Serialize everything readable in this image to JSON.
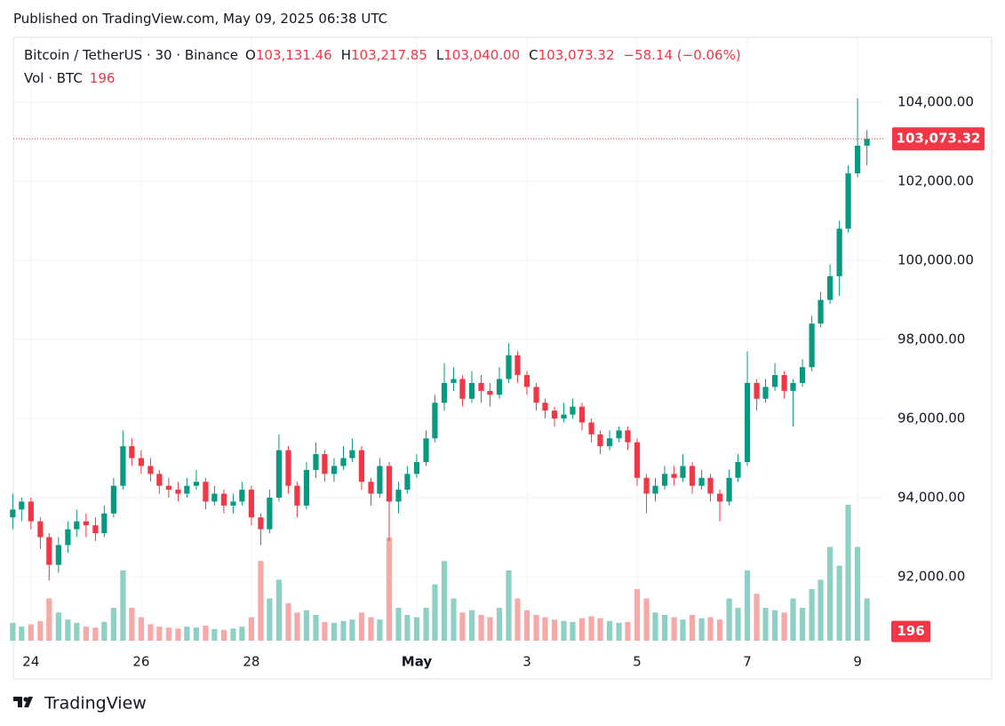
{
  "chart_data": {
    "type": "candlestick",
    "published": "Published on TradingView.com, May 09, 2025 06:38 UTC",
    "symbol": "Bitcoin / TetherUS · 30 · Binance",
    "legend": [
      {
        "key": "O",
        "value": "103,131.46"
      },
      {
        "key": "H",
        "value": "103,217.85"
      },
      {
        "key": "L",
        "value": "103,040.00"
      },
      {
        "key": "C"
      }
    ],
    "change": "−58.14 (−0.06%)",
    "volume_legend": "Vol · BTC",
    "last_volume": 196,
    "last_price": {
      "value": 103073.32,
      "label": "103,073.32"
    },
    "footer": "TradingView",
    "up_color": "#089981",
    "down_color": "#f23645",
    "volume_up_color": "#8fd0c6",
    "volume_down_color": "#f7a9a7",
    "grid": true,
    "xlim": [
      23.68,
      39.45
    ],
    "xticks": [
      24,
      26,
      28,
      {
        "value": 31,
        "label": "May"
      },
      {
        "value": 33,
        "label": "3"
      },
      {
        "value": 35,
        "label": "5"
      },
      {
        "value": 37,
        "label": "7"
      },
      {
        "value": 39,
        "label": "9"
      }
    ],
    "ylim": [
      90180,
      105640
    ],
    "yticks": [
      {
        "value": 92000,
        "label": "92,000.00"
      },
      {
        "value": 94000,
        "label": "94,000.00"
      },
      {
        "value": 96000,
        "label": "96,000.00"
      },
      {
        "value": 98000,
        "label": "98,000.00"
      },
      {
        "value": 100000,
        "label": "100,000.00"
      },
      {
        "value": 102000,
        "label": "102,000.00"
      },
      {
        "value": 104000,
        "label": "104,000.00"
      }
    ],
    "vlim": [
      0,
      3600
    ],
    "x": [
      23.67,
      23.83,
      24,
      24.17,
      24.33,
      24.5,
      24.67,
      24.83,
      25,
      25.17,
      25.33,
      25.5,
      25.67,
      25.83,
      26,
      26.17,
      26.33,
      26.5,
      26.67,
      26.83,
      27,
      27.17,
      27.33,
      27.5,
      27.67,
      27.83,
      28,
      28.17,
      28.33,
      28.5,
      28.67,
      28.83,
      29,
      29.17,
      29.33,
      29.5,
      29.67,
      29.83,
      30,
      30.17,
      30.33,
      30.5,
      30.67,
      30.83,
      31,
      31.17,
      31.33,
      31.5,
      31.67,
      31.83,
      32,
      32.17,
      32.33,
      32.5,
      32.67,
      32.83,
      33,
      33.17,
      33.33,
      33.5,
      33.67,
      33.83,
      34,
      34.17,
      34.33,
      34.5,
      34.67,
      34.83,
      35,
      35.17,
      35.33,
      35.5,
      35.67,
      35.83,
      36,
      36.17,
      36.33,
      36.5,
      36.67,
      36.83,
      37,
      37.17,
      37.33,
      37.5,
      37.67,
      37.83,
      38,
      38.17,
      38.33,
      38.5,
      38.67,
      38.83,
      39,
      39.17
    ],
    "open": [
      93500,
      93700,
      93900,
      93400,
      93000,
      92300,
      92800,
      93200,
      93400,
      93300,
      93100,
      93600,
      94300,
      95300,
      95000,
      94800,
      94600,
      94300,
      94200,
      94100,
      94300,
      94400,
      93900,
      94100,
      93800,
      93900,
      94200,
      93500,
      93200,
      94000,
      95200,
      94300,
      93800,
      94700,
      95100,
      94600,
      94800,
      95000,
      95200,
      94400,
      94100,
      94800,
      93900,
      94200,
      94600,
      94900,
      95500,
      96400,
      96900,
      97000,
      96500,
      96900,
      96700,
      96600,
      97000,
      97600,
      97100,
      96800,
      96400,
      96200,
      96000,
      96100,
      96300,
      95900,
      95600,
      95300,
      95500,
      95700,
      95400,
      94500,
      94100,
      94300,
      94600,
      94500,
      94800,
      94300,
      94500,
      94100,
      93900,
      94500,
      94900,
      96900,
      96500,
      96800,
      97100,
      96700,
      96900,
      97300,
      98400,
      99000,
      99600,
      100800,
      102200,
      102900
    ],
    "high": [
      94100,
      94000,
      94000,
      93500,
      93100,
      93000,
      93400,
      93700,
      93600,
      93500,
      93800,
      94500,
      95700,
      95500,
      95200,
      95000,
      94700,
      94500,
      94400,
      94500,
      94700,
      94500,
      94300,
      94200,
      94100,
      94400,
      94300,
      93600,
      94200,
      95600,
      95300,
      94400,
      94900,
      95400,
      95200,
      95000,
      95300,
      95500,
      95300,
      94500,
      95000,
      94900,
      94400,
      94800,
      95100,
      95700,
      96600,
      97400,
      97300,
      97100,
      97200,
      97100,
      96900,
      97300,
      97900,
      97700,
      97200,
      96900,
      96500,
      96300,
      96400,
      96500,
      96400,
      96000,
      95700,
      95700,
      95800,
      95800,
      95500,
      94600,
      94500,
      94800,
      94800,
      95100,
      94900,
      94700,
      94600,
      94200,
      94700,
      95100,
      97700,
      97000,
      97000,
      97400,
      97200,
      97000,
      97500,
      98600,
      99200,
      99900,
      101000,
      102400,
      104100,
      103300
    ],
    "low": [
      93200,
      93400,
      93200,
      92700,
      91900,
      92100,
      92600,
      93000,
      93000,
      92900,
      93000,
      93500,
      94200,
      94800,
      94600,
      94400,
      94100,
      94000,
      93900,
      94000,
      94200,
      93700,
      93800,
      93600,
      93600,
      93800,
      93300,
      92800,
      93100,
      93900,
      94100,
      93500,
      93700,
      94500,
      94400,
      94400,
      94700,
      94900,
      94200,
      93800,
      94000,
      92900,
      93600,
      94100,
      94500,
      94800,
      95400,
      96200,
      96700,
      96300,
      96400,
      96400,
      96300,
      96500,
      96900,
      96900,
      96600,
      96200,
      96000,
      95800,
      95900,
      96000,
      95700,
      95400,
      95100,
      95200,
      95400,
      95200,
      94300,
      93600,
      93900,
      94200,
      94300,
      94400,
      94100,
      94200,
      93900,
      93400,
      93800,
      94400,
      94800,
      96200,
      96400,
      96700,
      96500,
      95800,
      96800,
      97200,
      98300,
      98900,
      99100,
      100700,
      102100,
      102400
    ],
    "close": [
      93700,
      93900,
      93400,
      93000,
      92300,
      92800,
      93200,
      93400,
      93300,
      93100,
      93600,
      94300,
      95300,
      95000,
      94800,
      94600,
      94300,
      94200,
      94100,
      94300,
      94400,
      93900,
      94100,
      93800,
      93900,
      94200,
      93500,
      93200,
      94000,
      95200,
      94300,
      93800,
      94700,
      95100,
      94600,
      94800,
      95000,
      95200,
      94400,
      94100,
      94800,
      93900,
      94200,
      94600,
      94900,
      95500,
      96400,
      96900,
      97000,
      96500,
      96900,
      96700,
      96600,
      97000,
      97600,
      97100,
      96800,
      96400,
      96200,
      96000,
      96100,
      96300,
      95900,
      95600,
      95300,
      95500,
      95700,
      95400,
      94500,
      94100,
      94300,
      94600,
      94500,
      94800,
      94300,
      94500,
      94100,
      93900,
      94500,
      94900,
      96900,
      96500,
      96800,
      97100,
      96700,
      96900,
      97300,
      98400,
      99000,
      99600,
      100800,
      102200,
      102900,
      103073.32
    ],
    "volume": [
      380,
      300,
      350,
      420,
      900,
      600,
      450,
      380,
      300,
      280,
      400,
      700,
      1500,
      700,
      500,
      350,
      300,
      280,
      260,
      300,
      280,
      320,
      250,
      230,
      260,
      300,
      500,
      1700,
      900,
      1300,
      800,
      600,
      650,
      550,
      400,
      380,
      420,
      450,
      600,
      500,
      450,
      2200,
      700,
      550,
      500,
      700,
      1200,
      1700,
      900,
      600,
      650,
      550,
      500,
      700,
      1500,
      900,
      650,
      550,
      500,
      450,
      420,
      400,
      480,
      520,
      480,
      420,
      380,
      400,
      1100,
      900,
      600,
      550,
      500,
      450,
      550,
      480,
      500,
      450,
      900,
      700,
      1500,
      1000,
      700,
      650,
      600,
      900,
      700,
      1100,
      1300,
      2000,
      1600,
      2900,
      2000,
      900
    ]
  }
}
